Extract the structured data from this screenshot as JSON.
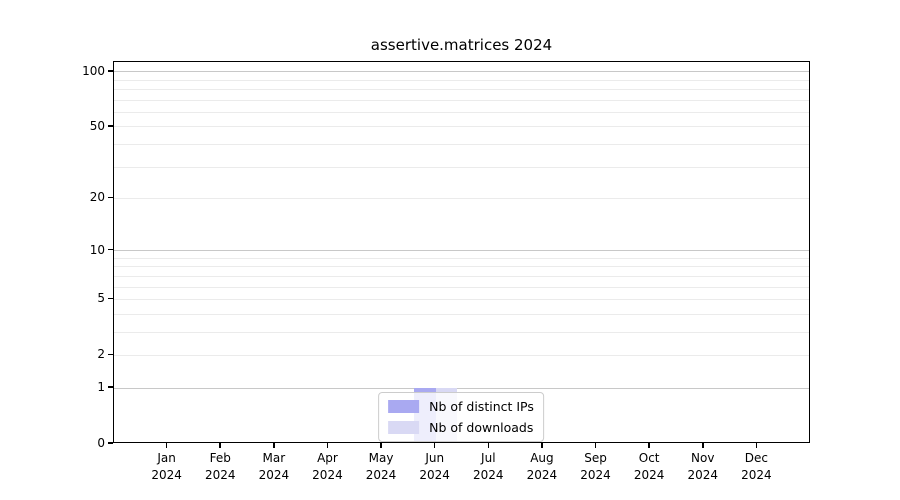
{
  "title": "assertive.matrices 2024",
  "chart_data": {
    "type": "bar",
    "title": "assertive.matrices 2024",
    "x_categories": [
      "Jan 2024",
      "Feb 2024",
      "Mar 2024",
      "Apr 2024",
      "May 2024",
      "Jun 2024",
      "Jul 2024",
      "Aug 2024",
      "Sep 2024",
      "Oct 2024",
      "Nov 2024",
      "Dec 2024"
    ],
    "x_tick_labels": [
      [
        "Jan",
        "2024"
      ],
      [
        "Feb",
        "2024"
      ],
      [
        "Mar",
        "2024"
      ],
      [
        "Apr",
        "2024"
      ],
      [
        "May",
        "2024"
      ],
      [
        "Jun",
        "2024"
      ],
      [
        "Jul",
        "2024"
      ],
      [
        "Aug",
        "2024"
      ],
      [
        "Sep",
        "2024"
      ],
      [
        "Oct",
        "2024"
      ],
      [
        "Nov",
        "2024"
      ],
      [
        "Dec",
        "2024"
      ]
    ],
    "series": [
      {
        "name": "Nb of distinct IPs",
        "color": "#a9a9f1",
        "values": [
          0,
          0,
          0,
          0,
          0,
          1,
          0,
          0,
          0,
          0,
          0,
          0
        ]
      },
      {
        "name": "Nb of downloads",
        "color": "#d9d9f4",
        "values": [
          0,
          0,
          0,
          0,
          0,
          1,
          0,
          0,
          0,
          0,
          0,
          0
        ]
      }
    ],
    "y_scale": "log1p",
    "ylim": [
      0,
      113
    ],
    "y_tick_values": [
      0,
      1,
      2,
      5,
      10,
      20,
      50,
      100
    ],
    "y_tick_labels": [
      "0",
      "1",
      "2",
      "5",
      "10",
      "20",
      "50",
      "100"
    ],
    "grid_minor_values": [
      2,
      3,
      4,
      5,
      6,
      7,
      8,
      9,
      20,
      30,
      40,
      50,
      60,
      70,
      80,
      90
    ],
    "grid_major_values": [
      1,
      10,
      100
    ],
    "legend_position": "lower center",
    "colors": {
      "grid_minor": "#ebebeb",
      "grid_major": "#c8c8c8",
      "spine": "#000000",
      "legend_border": "#cccccc",
      "legend_background": "rgba(255,255,255,0.8)",
      "text": "#000000"
    }
  }
}
